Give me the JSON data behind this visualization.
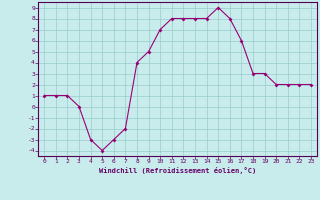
{
  "x": [
    0,
    1,
    2,
    3,
    4,
    5,
    6,
    7,
    8,
    9,
    10,
    11,
    12,
    13,
    14,
    15,
    16,
    17,
    18,
    19,
    20,
    21,
    22,
    23
  ],
  "y": [
    1,
    1,
    1,
    0,
    -3,
    -4,
    -3,
    -2,
    4,
    5,
    7,
    8,
    8,
    8,
    8,
    9,
    8,
    6,
    3,
    3,
    2,
    2,
    2,
    2
  ],
  "line_color": "#990077",
  "marker": "D",
  "marker_size": 2.0,
  "background_color": "#c8ecec",
  "grid_color": "#99cccc",
  "xlabel": "Windchill (Refroidissement éolien,°C)",
  "xlim": [
    -0.5,
    23.5
  ],
  "ylim": [
    -4.5,
    9.5
  ],
  "yticks": [
    -4,
    -3,
    -2,
    -1,
    0,
    1,
    2,
    3,
    4,
    5,
    6,
    7,
    8,
    9
  ],
  "xticks": [
    0,
    1,
    2,
    3,
    4,
    5,
    6,
    7,
    8,
    9,
    10,
    11,
    12,
    13,
    14,
    15,
    16,
    17,
    18,
    19,
    20,
    21,
    22,
    23
  ],
  "tick_color": "#660066",
  "label_color": "#660066",
  "spine_color": "#550055"
}
